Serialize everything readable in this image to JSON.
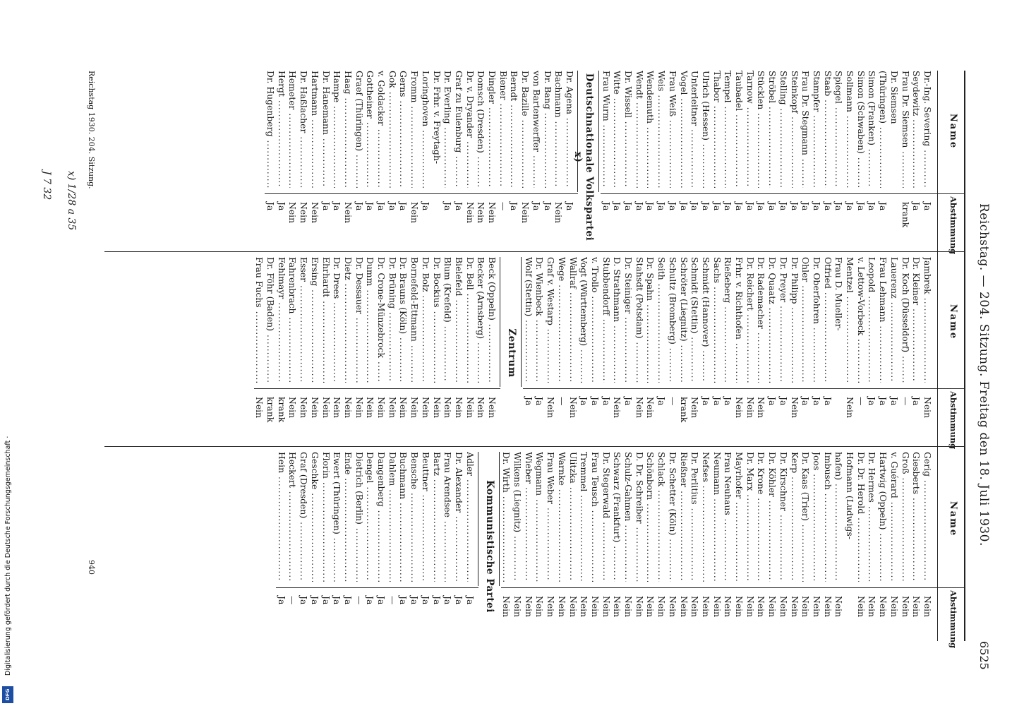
{
  "header": {
    "title": "Reichstag. — 204. Sitzung. Freitag den 18. Juli 1930.",
    "page_number": "6525"
  },
  "col_heads": {
    "name": "Name",
    "vote": "Abstimmung"
  },
  "column1": {
    "rows": [
      {
        "n": "Dr.-Ing. Severing",
        "v": "Ja"
      },
      {
        "n": "Seydewitz",
        "v": "Ja"
      },
      {
        "n": "Frau Dr. Siemsen",
        "v": "krank"
      },
      {
        "n": "Dr. Siemsen",
        "v": ""
      },
      {
        "n": "(Thüringen)",
        "v": "Ja"
      },
      {
        "n": "Simon (Franken)",
        "v": "Ja"
      },
      {
        "n": "Simon (Schwaben)",
        "v": "Ja"
      },
      {
        "n": "Sollmann",
        "v": "Ja"
      },
      {
        "n": "Spiegel",
        "v": "Ja"
      },
      {
        "n": "Staab",
        "v": "Ja"
      },
      {
        "n": "Stampfer",
        "v": "Ja"
      },
      {
        "n": "Frau Dr. Stegmann",
        "v": "Ja"
      },
      {
        "n": "Steinkopf",
        "v": "Ja"
      },
      {
        "n": "Stelling",
        "v": "Ja"
      },
      {
        "n": "Ströbel",
        "v": "Ja"
      },
      {
        "n": "Stücklen",
        "v": "Ja"
      },
      {
        "n": "Tarnow",
        "v": "Ja"
      },
      {
        "n": "Taubadel",
        "v": "Ja"
      },
      {
        "n": "Tempel",
        "v": "Ja"
      },
      {
        "n": "Thabor",
        "v": "Ja"
      },
      {
        "n": "Ulrich (Hessen)",
        "v": "Ja"
      },
      {
        "n": "Unterleitner",
        "v": "Ja"
      },
      {
        "n": "Vogel",
        "v": "Ja"
      },
      {
        "n": "Frau Weiß",
        "v": "Ja"
      },
      {
        "n": "Weis",
        "v": "Ja"
      },
      {
        "n": "Wendemuth",
        "v": "Ja"
      },
      {
        "n": "Wendt",
        "v": "Ja"
      },
      {
        "n": "Dr. Wissell",
        "v": "Ja"
      },
      {
        "n": "Witte",
        "v": "Ja"
      },
      {
        "n": "Frau Wurm",
        "v": "Ja"
      }
    ],
    "party": "Deutschnationale Volkspartei x)",
    "rows2": [
      {
        "n": "Dr. Agena",
        "v": "Ja"
      },
      {
        "n": "Bachmann",
        "v": "Nein"
      },
      {
        "n": "Dr. Bang",
        "v": "Ja"
      },
      {
        "n": "von Bartenwerffer",
        "v": "Ja"
      },
      {
        "n": "Dr. Bazille",
        "v": "Nein"
      },
      {
        "n": "Berndt",
        "v": "Ja"
      },
      {
        "n": "Biener",
        "v": "—"
      },
      {
        "n": "Dingler",
        "v": "Nein"
      },
      {
        "n": "Domsch (Dresden)",
        "v": "Nein"
      },
      {
        "n": "Dr. v. Dryander",
        "v": "Nein"
      },
      {
        "n": "Graf zu Eulenburg",
        "v": "Ja"
      },
      {
        "n": "Dr. Everling",
        "v": "Ja"
      },
      {
        "n": "Dr. Frhr. v. Freytagh-",
        "v": ""
      },
      {
        "n": "Loringhoven",
        "v": "Ja"
      },
      {
        "n": "Fromm",
        "v": "Nein"
      },
      {
        "n": "Gerns",
        "v": "Ja"
      },
      {
        "n": "Gok",
        "v": "Ja"
      },
      {
        "n": "v. Goldacker",
        "v": "Ja"
      },
      {
        "n": "Gottheiner",
        "v": "Ja"
      },
      {
        "n": "Graef (Thüringen)",
        "v": "Ja"
      },
      {
        "n": "Haag",
        "v": "Nein"
      },
      {
        "n": "Hampe",
        "v": "Ja"
      },
      {
        "n": "Dr. Hanemann",
        "v": "Ja"
      },
      {
        "n": "Hartmann",
        "v": "Nein"
      },
      {
        "n": "Dr. Haßlacher",
        "v": "Nein"
      },
      {
        "n": "Hemeter",
        "v": "Nein"
      },
      {
        "n": "Hergt",
        "v": "Ja"
      },
      {
        "n": "Dr. Hugenberg",
        "v": "Ja"
      }
    ]
  },
  "column2": {
    "rows": [
      {
        "n": "Jambrek",
        "v": "Nein"
      },
      {
        "n": "Dr. Kleiner",
        "v": "Ja"
      },
      {
        "n": "Dr. Koch (Düsseldorf)",
        "v": "—"
      },
      {
        "n": "Lauerenz",
        "v": "Ja"
      },
      {
        "n": "Frau Lehmann",
        "v": "Ja"
      },
      {
        "n": "Leopold",
        "v": "Ja"
      },
      {
        "n": "v. Lettow-Vorbeck",
        "v": "—"
      },
      {
        "n": "Mentzel",
        "v": "Nein"
      },
      {
        "n": "Frau D. Mueller-",
        "v": ""
      },
      {
        "n": "Otfried",
        "v": "Ja"
      },
      {
        "n": "Dr. Oberfohren",
        "v": "Ja"
      },
      {
        "n": "Ohler",
        "v": "Ja"
      },
      {
        "n": "Dr. Philipp",
        "v": "Nein"
      },
      {
        "n": "Dr. Preyer",
        "v": "Ja"
      },
      {
        "n": "Dr. Quaatz",
        "v": "Ja"
      },
      {
        "n": "Dr. Rademacher",
        "v": "Nein"
      },
      {
        "n": "Dr. Reichert",
        "v": "Nein"
      },
      {
        "n": "Frhr. v. Richthofen",
        "v": "Nein"
      },
      {
        "n": "Rießeberg",
        "v": "Ja"
      },
      {
        "n": "Sachs",
        "v": "Ja"
      },
      {
        "n": "Schmidt (Hannover)",
        "v": "Ja"
      },
      {
        "n": "Schmidt (Stettin)",
        "v": "Nein"
      },
      {
        "n": "Schröter (Liegnitz)",
        "v": "krank"
      },
      {
        "n": "Schultz (Bromberg)",
        "v": "—"
      },
      {
        "n": "Seith",
        "v": "Ja"
      },
      {
        "n": "Dr. Spahn",
        "v": "Nein"
      },
      {
        "n": "Stahsdt (Potsdam)",
        "v": "Nein"
      },
      {
        "n": "Dr. Steiniger",
        "v": "Ja"
      },
      {
        "n": "D. Strathmann",
        "v": "Nein"
      },
      {
        "n": "Stubbendorff",
        "v": "Ja"
      },
      {
        "n": "v. Trollo",
        "v": "Ja"
      },
      {
        "n": "Vogt (Württemberg)",
        "v": "Ja"
      },
      {
        "n": "Wallraf",
        "v": "Nein"
      },
      {
        "n": "Wege",
        "v": "—"
      },
      {
        "n": "Graf v. Westarp",
        "v": "Nein"
      },
      {
        "n": "Dr. Wienbeck",
        "v": "Ja"
      },
      {
        "n": "Wolf (Stettin)",
        "v": "Ja"
      }
    ],
    "party": "Zentrum",
    "rows2": [
      {
        "n": "Beck (Oppeln)",
        "v": "Nein"
      },
      {
        "n": "Becker (Arnsberg)",
        "v": "Nein"
      },
      {
        "n": "Dr. Bell",
        "v": "Nein"
      },
      {
        "n": "Bielefeld",
        "v": "Nein"
      },
      {
        "n": "Blum (Krefeld)",
        "v": "Nein"
      },
      {
        "n": "Dr. Bockius",
        "v": "Nein"
      },
      {
        "n": "Dr. Bolz",
        "v": "Nein"
      },
      {
        "n": "Bornefeld-Ettmann",
        "v": "Nein"
      },
      {
        "n": "Dr. Brauns (Köln)",
        "v": "Nein"
      },
      {
        "n": "Dr. Brüning",
        "v": "Nein"
      },
      {
        "n": "Dr. Crone-Münzebrock",
        "v": "Nein"
      },
      {
        "n": "Dumm",
        "v": "Nein"
      },
      {
        "n": "Dr. Dessauer",
        "v": "Nein"
      },
      {
        "n": "Dietz",
        "v": "Nein"
      },
      {
        "n": "Dr. Drees",
        "v": "Nein"
      },
      {
        "n": "Ehrhardt",
        "v": "Nein"
      },
      {
        "n": "Ersing",
        "v": "Nein"
      },
      {
        "n": "Esser",
        "v": "Nein"
      },
      {
        "n": "Fahrenbrach",
        "v": "Nein"
      },
      {
        "n": "Fehlmayr",
        "v": "krank"
      },
      {
        "n": "Dr. Föhr (Baden)",
        "v": "krank"
      },
      {
        "n": "Frau Fuchs",
        "v": "Nein"
      }
    ]
  },
  "column3": {
    "rows": [
      {
        "n": "Gerig",
        "v": "Nein"
      },
      {
        "n": "Giesberts",
        "v": "Nein"
      },
      {
        "n": "Groß",
        "v": "Nein"
      },
      {
        "n": "v. Guérard",
        "v": "Nein"
      },
      {
        "n": "Hartwig (Oppeln)",
        "v": "Nein"
      },
      {
        "n": "Dr. Hermes",
        "v": "Nein"
      },
      {
        "n": "Dr. Dr. Herold",
        "v": "Nein"
      },
      {
        "n": "Hofmann (Ludwigs-",
        "v": ""
      },
      {
        "n": "hafen)",
        "v": "Nein"
      },
      {
        "n": "Imbusch",
        "v": "Nein"
      },
      {
        "n": "Joos",
        "v": "Nein"
      },
      {
        "n": "Dr. Kaas (Trier)",
        "v": "Nein"
      },
      {
        "n": "Kerp",
        "v": "Nein"
      },
      {
        "n": "Dr. Kirschner",
        "v": "Nein"
      },
      {
        "n": "Dr. Köhler",
        "v": "Nein"
      },
      {
        "n": "Dr. Krone",
        "v": "Nein"
      },
      {
        "n": "Dr. Marx",
        "v": "Nein"
      },
      {
        "n": "Mayrhofer",
        "v": "Nein"
      },
      {
        "n": "Frau Neuhaus",
        "v": "Nein"
      },
      {
        "n": "Neumann",
        "v": "Nein"
      },
      {
        "n": "Nefses",
        "v": "Nein"
      },
      {
        "n": "Dr. Perlitius",
        "v": "Nein"
      },
      {
        "n": "Rießner",
        "v": "Nein"
      },
      {
        "n": "Dr. Schetter (Köln)",
        "v": "Nein"
      },
      {
        "n": "Schlack",
        "v": "Nein"
      },
      {
        "n": "Schönborn",
        "v": "Nein"
      },
      {
        "n": "D. Dr. Schreiber",
        "v": "Nein"
      },
      {
        "n": "Schulz-Gahmen",
        "v": "Nein"
      },
      {
        "n": "Schwarz (Frankfurt)",
        "v": "Nein"
      },
      {
        "n": "Dr. Stegerwald",
        "v": "Nein"
      },
      {
        "n": "Frau Teusch",
        "v": "Nein"
      },
      {
        "n": "Tremmel",
        "v": "Nein"
      },
      {
        "n": "Ulitzka",
        "v": "Nein"
      },
      {
        "n": "Warnke",
        "v": "Nein"
      },
      {
        "n": "Frau Weber",
        "v": "Nein"
      },
      {
        "n": "Wegmann",
        "v": "Nein"
      },
      {
        "n": "Wieber",
        "v": "Nein"
      },
      {
        "n": "Wilkens (Liegnitz)",
        "v": "Nein"
      },
      {
        "n": "Dr. Wirth",
        "v": "Nein"
      }
    ],
    "party": "Kommunistische Partei",
    "rows2": [
      {
        "n": "Adler",
        "v": "Ja"
      },
      {
        "n": "Dr. Alexander",
        "v": "Ja"
      },
      {
        "n": "Frau Arendsee",
        "v": "Ja"
      },
      {
        "n": "Bartz",
        "v": "Ja"
      },
      {
        "n": "Beuttner",
        "v": "Ja"
      },
      {
        "n": "Bensche",
        "v": "Ja"
      },
      {
        "n": "Buchmann",
        "v": "Ja"
      },
      {
        "n": "Dahlem",
        "v": "—"
      },
      {
        "n": "Dangenberg",
        "v": "Ja"
      },
      {
        "n": "Dengel",
        "v": "Ja"
      },
      {
        "n": "Dietrich (Berlin)",
        "v": "—"
      },
      {
        "n": "Ende",
        "v": "Ja"
      },
      {
        "n": "Ewert (Thüringen)",
        "v": "Ja"
      },
      {
        "n": "Florin",
        "v": "Ja"
      },
      {
        "n": "Geschke",
        "v": "Ja"
      },
      {
        "n": "Graf (Dresden)",
        "v": "Ja"
      },
      {
        "n": "Heckert",
        "v": "—"
      },
      {
        "n": "Hein",
        "v": "Ja"
      }
    ]
  },
  "footer": {
    "sitting": "Reichstag 1930. 204. Sitzung.",
    "sheet": "940",
    "annotation_1": "x) 1/28 a 35",
    "annotation_2": "J 7 32"
  },
  "sidebar": {
    "credit": "Digitalisierung gefördert durch die Deutsche Forschungsgemeinschaft ·",
    "logo": "DFG"
  }
}
